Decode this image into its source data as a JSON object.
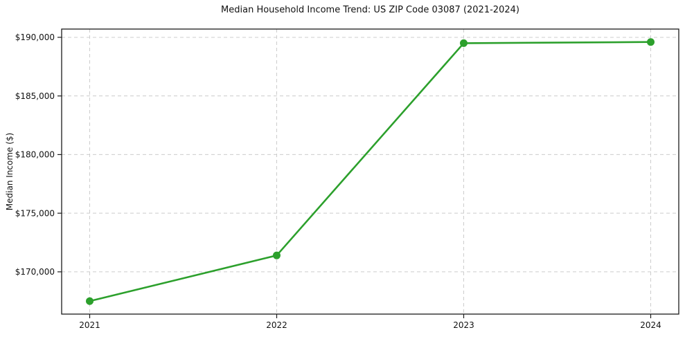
{
  "chart_data": {
    "type": "line",
    "title": "Median Household Income Trend: US ZIP Code 03087 (2021-2024)",
    "xlabel": "",
    "ylabel": "Median Income ($)",
    "x": [
      2021,
      2022,
      2023,
      2024
    ],
    "x_tick_labels": [
      "2021",
      "2022",
      "2023",
      "2024"
    ],
    "series": [
      {
        "name": "Median Household Income",
        "values": [
          167500,
          171400,
          189500,
          189600
        ],
        "color": "#2ca02c",
        "marker": "circle",
        "line_width": 2.6,
        "marker_radius": 5.5
      }
    ],
    "y_ticks": [
      {
        "value": 170000,
        "label": "$170,000"
      },
      {
        "value": 175000,
        "label": "$175,000"
      },
      {
        "value": 180000,
        "label": "$180,000"
      },
      {
        "value": 185000,
        "label": "$185,000"
      },
      {
        "value": 190000,
        "label": "$190,000"
      }
    ],
    "xlim": [
      2020.85,
      2024.15
    ],
    "ylim": [
      166395,
      190705
    ],
    "grid": true,
    "grid_style": "dashed",
    "legend": "none",
    "colors": {
      "line": "#2ca02c",
      "grid": "#cccccc",
      "spine": "#1a1a1a",
      "text": "#111111",
      "background": "#ffffff"
    }
  }
}
